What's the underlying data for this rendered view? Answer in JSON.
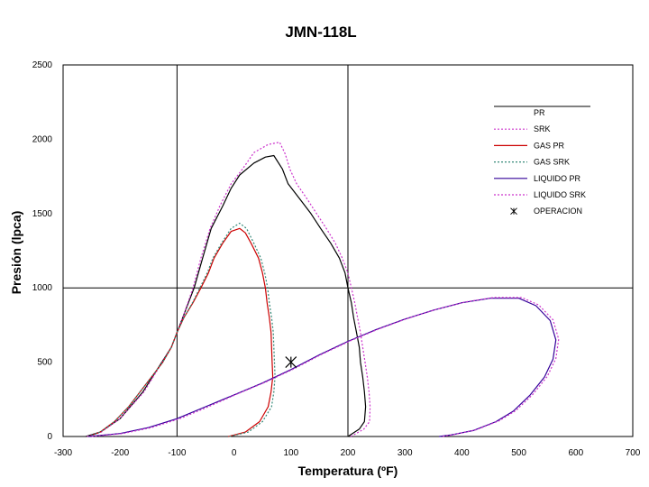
{
  "chart_data": {
    "type": "line",
    "title": "JMN-118L",
    "xlabel": "Temperatura (ºF)",
    "ylabel": "Presión (lpca)",
    "xlim": [
      -300,
      700
    ],
    "ylim": [
      0,
      2500
    ],
    "xticks": [
      "-300",
      "-200",
      "-100",
      "0",
      "100",
      "200",
      "300",
      "400",
      "500",
      "600",
      "700"
    ],
    "yticks": [
      "0",
      "500",
      "1000",
      "1500",
      "2000",
      "2500"
    ],
    "grid": "lines at x=-100, x=200, y=1000",
    "legend_position": "right",
    "series": [
      {
        "name": "PR",
        "color": "#000000",
        "dash": "solid",
        "points": [
          [
            200,
            0
          ],
          [
            220,
            50
          ],
          [
            229,
            100
          ],
          [
            231,
            200
          ],
          [
            229,
            300
          ],
          [
            226,
            400
          ],
          [
            222,
            500
          ],
          [
            220,
            600
          ],
          [
            215,
            700
          ],
          [
            210,
            800
          ],
          [
            206,
            900
          ],
          [
            200,
            1000
          ],
          [
            195,
            1100
          ],
          [
            185,
            1200
          ],
          [
            170,
            1300
          ],
          [
            152,
            1400
          ],
          [
            135,
            1500
          ],
          [
            115,
            1600
          ],
          [
            95,
            1700
          ],
          [
            85,
            1800
          ],
          [
            70,
            1890
          ],
          [
            55,
            1880
          ],
          [
            35,
            1840
          ],
          [
            10,
            1760
          ],
          [
            -5,
            1670
          ],
          [
            -20,
            1550
          ],
          [
            -40,
            1400
          ],
          [
            -55,
            1200
          ],
          [
            -70,
            1000
          ],
          [
            -90,
            800
          ],
          [
            -110,
            600
          ],
          [
            -160,
            300
          ],
          [
            -200,
            120
          ],
          [
            -235,
            30
          ],
          [
            -260,
            0
          ]
        ]
      },
      {
        "name": "SRK",
        "color": "#cc33cc",
        "dash": "dotted",
        "points": [
          [
            205,
            0
          ],
          [
            228,
            50
          ],
          [
            238,
            100
          ],
          [
            239,
            200
          ],
          [
            237,
            300
          ],
          [
            234,
            400
          ],
          [
            230,
            500
          ],
          [
            226,
            600
          ],
          [
            222,
            700
          ],
          [
            217,
            800
          ],
          [
            212,
            900
          ],
          [
            206,
            1000
          ],
          [
            200,
            1100
          ],
          [
            190,
            1200
          ],
          [
            178,
            1300
          ],
          [
            162,
            1400
          ],
          [
            145,
            1500
          ],
          [
            128,
            1600
          ],
          [
            110,
            1700
          ],
          [
            98,
            1800
          ],
          [
            90,
            1900
          ],
          [
            80,
            1980
          ],
          [
            60,
            1965
          ],
          [
            35,
            1910
          ],
          [
            15,
            1800
          ],
          [
            -5,
            1700
          ],
          [
            -25,
            1550
          ],
          [
            -42,
            1400
          ],
          [
            -58,
            1200
          ],
          [
            -72,
            1000
          ],
          [
            -90,
            800
          ],
          [
            -110,
            600
          ],
          [
            -158,
            300
          ],
          [
            -200,
            120
          ],
          [
            -233,
            30
          ],
          [
            -258,
            0
          ]
        ]
      },
      {
        "name": "GAS PR",
        "color": "#cc0000",
        "dash": "solid",
        "points": [
          [
            -10,
            0
          ],
          [
            20,
            30
          ],
          [
            45,
            100
          ],
          [
            60,
            200
          ],
          [
            65,
            300
          ],
          [
            68,
            400
          ],
          [
            67,
            500
          ],
          [
            66,
            600
          ],
          [
            65,
            700
          ],
          [
            62,
            800
          ],
          [
            58,
            900
          ],
          [
            55,
            1000
          ],
          [
            50,
            1100
          ],
          [
            43,
            1200
          ],
          [
            30,
            1300
          ],
          [
            20,
            1370
          ],
          [
            10,
            1400
          ],
          [
            -5,
            1380
          ],
          [
            -20,
            1300
          ],
          [
            -35,
            1200
          ],
          [
            -45,
            1100
          ],
          [
            -58,
            1000
          ],
          [
            -72,
            900
          ],
          [
            -88,
            800
          ],
          [
            -100,
            700
          ],
          [
            -110,
            600
          ],
          [
            -125,
            500
          ],
          [
            -145,
            400
          ],
          [
            -165,
            300
          ],
          [
            -185,
            200
          ],
          [
            -210,
            100
          ],
          [
            -235,
            30
          ],
          [
            -255,
            0
          ]
        ]
      },
      {
        "name": "GAS SRK",
        "color": "#338877",
        "dash": "dotted",
        "points": [
          [
            -8,
            0
          ],
          [
            25,
            30
          ],
          [
            50,
            100
          ],
          [
            66,
            200
          ],
          [
            70,
            300
          ],
          [
            72,
            400
          ],
          [
            71,
            500
          ],
          [
            70,
            600
          ],
          [
            69,
            700
          ],
          [
            66,
            800
          ],
          [
            62,
            900
          ],
          [
            59,
            1000
          ],
          [
            54,
            1100
          ],
          [
            47,
            1200
          ],
          [
            35,
            1300
          ],
          [
            22,
            1400
          ],
          [
            10,
            1435
          ],
          [
            -5,
            1400
          ],
          [
            -22,
            1300
          ],
          [
            -37,
            1200
          ],
          [
            -47,
            1100
          ],
          [
            -60,
            1000
          ],
          [
            -73,
            900
          ],
          [
            -88,
            800
          ],
          [
            -100,
            700
          ],
          [
            -110,
            600
          ],
          [
            -125,
            500
          ],
          [
            -145,
            400
          ],
          [
            -165,
            300
          ],
          [
            -185,
            200
          ],
          [
            -210,
            100
          ],
          [
            -235,
            30
          ],
          [
            -255,
            0
          ]
        ]
      },
      {
        "name": "LIQUIDO PR",
        "color": "#330099",
        "dash": "solid",
        "points": [
          [
            -255,
            0
          ],
          [
            -200,
            20
          ],
          [
            -150,
            60
          ],
          [
            -100,
            120
          ],
          [
            -50,
            200
          ],
          [
            0,
            280
          ],
          [
            50,
            360
          ],
          [
            100,
            450
          ],
          [
            150,
            550
          ],
          [
            200,
            640
          ],
          [
            250,
            720
          ],
          [
            300,
            790
          ],
          [
            350,
            850
          ],
          [
            400,
            900
          ],
          [
            450,
            930
          ],
          [
            500,
            930
          ],
          [
            530,
            880
          ],
          [
            555,
            780
          ],
          [
            565,
            650
          ],
          [
            560,
            520
          ],
          [
            545,
            400
          ],
          [
            520,
            280
          ],
          [
            490,
            170
          ],
          [
            460,
            100
          ],
          [
            420,
            40
          ],
          [
            380,
            10
          ],
          [
            360,
            0
          ]
        ]
      },
      {
        "name": "LIQUIDO SRK",
        "color": "#cc33cc",
        "dash": "dotted",
        "points": [
          [
            -250,
            0
          ],
          [
            -195,
            20
          ],
          [
            -145,
            60
          ],
          [
            -95,
            120
          ],
          [
            -45,
            200
          ],
          [
            5,
            285
          ],
          [
            55,
            365
          ],
          [
            105,
            455
          ],
          [
            155,
            555
          ],
          [
            205,
            645
          ],
          [
            255,
            725
          ],
          [
            305,
            795
          ],
          [
            355,
            855
          ],
          [
            405,
            905
          ],
          [
            455,
            935
          ],
          [
            505,
            935
          ],
          [
            535,
            885
          ],
          [
            560,
            785
          ],
          [
            570,
            655
          ],
          [
            565,
            525
          ],
          [
            550,
            405
          ],
          [
            525,
            285
          ],
          [
            495,
            175
          ],
          [
            465,
            105
          ],
          [
            425,
            45
          ],
          [
            385,
            12
          ],
          [
            365,
            0
          ]
        ]
      }
    ],
    "markers": [
      {
        "name": "OPERACION",
        "x": 100,
        "y": 500,
        "symbol": "asterisk",
        "color": "#000000"
      }
    ]
  }
}
